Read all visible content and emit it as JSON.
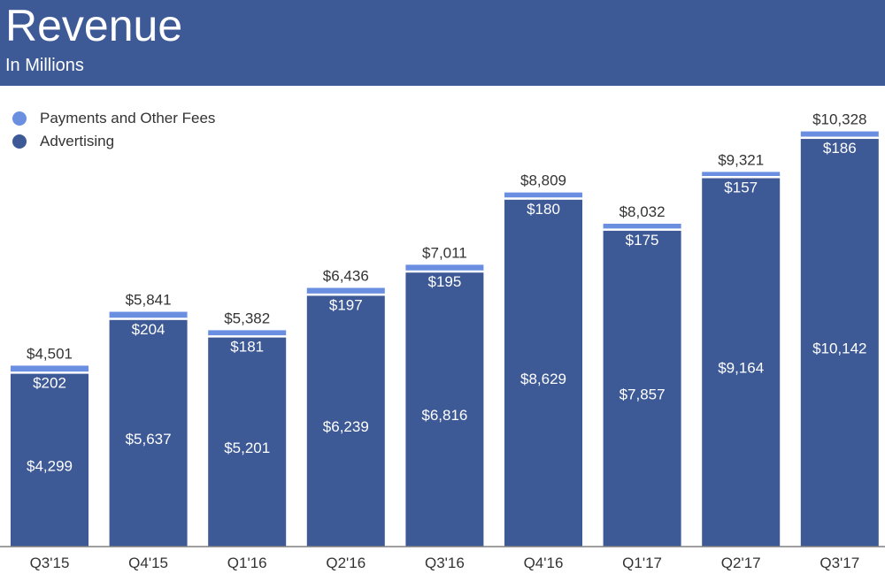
{
  "header": {
    "title": "Revenue",
    "subtitle": "In Millions"
  },
  "colors": {
    "header_bg": "#3e5a96",
    "advertising": "#3e5a96",
    "payments": "#6a8fe0",
    "axis": "#808080",
    "text": "#333333",
    "inner_text": "#ffffff"
  },
  "legend": {
    "items": [
      {
        "label": "Payments and Other Fees",
        "color": "#6a8fe0"
      },
      {
        "label": "Advertising",
        "color": "#3e5a96"
      }
    ]
  },
  "chart_data": {
    "type": "bar",
    "stacked": true,
    "title": "Revenue",
    "subtitle": "In Millions",
    "categories": [
      "Q3'15",
      "Q4'15",
      "Q1'16",
      "Q2'16",
      "Q3'16",
      "Q4'16",
      "Q1'17",
      "Q2'17",
      "Q3'17"
    ],
    "series": [
      {
        "name": "Advertising",
        "values": [
          4299,
          5637,
          5201,
          6239,
          6816,
          8629,
          7857,
          9164,
          10142
        ],
        "labels": [
          "$4,299",
          "$5,637",
          "$5,201",
          "$6,239",
          "$6,816",
          "$8,629",
          "$7,857",
          "$9,164",
          "$10,142"
        ]
      },
      {
        "name": "Payments and Other Fees",
        "values": [
          202,
          204,
          181,
          197,
          195,
          180,
          175,
          157,
          186
        ],
        "labels": [
          "$202",
          "$204",
          "$181",
          "$197",
          "$195",
          "$180",
          "$175",
          "$157",
          "$186"
        ]
      }
    ],
    "totals": [
      4501,
      5841,
      5382,
      6436,
      7011,
      8809,
      8032,
      9321,
      10328
    ],
    "total_labels": [
      "$4,501",
      "$5,841",
      "$5,382",
      "$6,436",
      "$7,011",
      "$8,809",
      "$8,032",
      "$9,321",
      "$10,328"
    ],
    "legend_position": "top-left",
    "grid": false,
    "xlabel": "",
    "ylabel": ""
  }
}
